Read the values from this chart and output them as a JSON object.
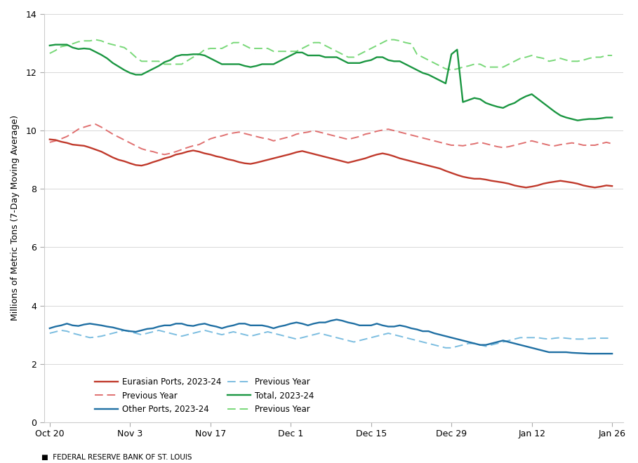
{
  "title": "",
  "ylabel": "Millions of Metric Tons (7-Day Moving Average)",
  "xlabel": "",
  "footnote": "FEDERAL RESERVE BANK OF ST. LOUIS",
  "ylim": [
    0,
    14
  ],
  "yticks": [
    0,
    2,
    4,
    6,
    8,
    10,
    12,
    14
  ],
  "colors": {
    "eurasian_current": "#C0392B",
    "eurasian_prev": "#E07070",
    "other_current": "#1F6FA3",
    "other_prev": "#7BBDE0",
    "total_current": "#1A9641",
    "total_prev": "#78D878"
  },
  "legend_labels": {
    "eurasian_current": "Eurasian Ports, 2023-24",
    "eurasian_prev": "Previous Year",
    "other_current": "Other Ports, 2023-24",
    "other_prev": "Previous Year",
    "total_current": "Total, 2023-24",
    "total_prev": "Previous Year"
  },
  "start_date": "2023-10-20",
  "num_days": 99,
  "eurasian_current": [
    9.7,
    9.68,
    9.62,
    9.58,
    9.52,
    9.5,
    9.48,
    9.42,
    9.35,
    9.28,
    9.18,
    9.08,
    9.0,
    8.95,
    8.88,
    8.82,
    8.8,
    8.85,
    8.92,
    8.98,
    9.05,
    9.1,
    9.18,
    9.22,
    9.28,
    9.32,
    9.28,
    9.22,
    9.18,
    9.12,
    9.08,
    9.02,
    8.98,
    8.92,
    8.88,
    8.86,
    8.9,
    8.95,
    9.0,
    9.05,
    9.1,
    9.15,
    9.2,
    9.26,
    9.3,
    9.25,
    9.2,
    9.15,
    9.1,
    9.05,
    9.0,
    8.95,
    8.9,
    8.95,
    9.0,
    9.05,
    9.12,
    9.18,
    9.22,
    9.18,
    9.12,
    9.05,
    9.0,
    8.95,
    8.9,
    8.85,
    8.8,
    8.75,
    8.7,
    8.62,
    8.55,
    8.48,
    8.42,
    8.38,
    8.35,
    8.35,
    8.32,
    8.28,
    8.25,
    8.22,
    8.18,
    8.12,
    8.08,
    8.05,
    8.08,
    8.12,
    8.18,
    8.22,
    8.25,
    8.28,
    8.25,
    8.22,
    8.18,
    8.12,
    8.08,
    8.05,
    8.08,
    8.12,
    8.1
  ],
  "eurasian_prev": [
    9.6,
    9.65,
    9.72,
    9.8,
    9.92,
    10.05,
    10.12,
    10.18,
    10.22,
    10.12,
    10.0,
    9.88,
    9.78,
    9.68,
    9.58,
    9.48,
    9.38,
    9.32,
    9.28,
    9.22,
    9.18,
    9.22,
    9.28,
    9.35,
    9.42,
    9.48,
    9.52,
    9.62,
    9.72,
    9.78,
    9.82,
    9.88,
    9.92,
    9.95,
    9.9,
    9.85,
    9.8,
    9.75,
    9.72,
    9.65,
    9.7,
    9.75,
    9.8,
    9.88,
    9.92,
    9.95,
    10.0,
    9.95,
    9.9,
    9.85,
    9.8,
    9.75,
    9.7,
    9.75,
    9.8,
    9.88,
    9.92,
    9.98,
    10.02,
    10.05,
    10.0,
    9.95,
    9.9,
    9.85,
    9.8,
    9.75,
    9.7,
    9.65,
    9.6,
    9.55,
    9.5,
    9.5,
    9.48,
    9.52,
    9.55,
    9.6,
    9.55,
    9.5,
    9.45,
    9.42,
    9.45,
    9.5,
    9.55,
    9.6,
    9.65,
    9.6,
    9.55,
    9.5,
    9.48,
    9.52,
    9.55,
    9.58,
    9.55,
    9.5,
    9.5,
    9.5,
    9.55,
    9.6,
    9.55
  ],
  "other_current": [
    3.22,
    3.28,
    3.32,
    3.38,
    3.32,
    3.3,
    3.35,
    3.38,
    3.35,
    3.32,
    3.28,
    3.25,
    3.2,
    3.15,
    3.12,
    3.1,
    3.15,
    3.2,
    3.22,
    3.28,
    3.32,
    3.32,
    3.38,
    3.38,
    3.32,
    3.3,
    3.35,
    3.38,
    3.32,
    3.28,
    3.22,
    3.28,
    3.32,
    3.38,
    3.38,
    3.32,
    3.32,
    3.32,
    3.28,
    3.22,
    3.28,
    3.32,
    3.38,
    3.42,
    3.38,
    3.32,
    3.38,
    3.42,
    3.42,
    3.48,
    3.52,
    3.48,
    3.42,
    3.38,
    3.32,
    3.32,
    3.32,
    3.38,
    3.32,
    3.28,
    3.28,
    3.32,
    3.28,
    3.22,
    3.18,
    3.12,
    3.12,
    3.05,
    3.0,
    2.95,
    2.9,
    2.85,
    2.8,
    2.75,
    2.7,
    2.65,
    2.65,
    2.7,
    2.75,
    2.8,
    2.75,
    2.7,
    2.65,
    2.6,
    2.55,
    2.5,
    2.45,
    2.4,
    2.4,
    2.4,
    2.4,
    2.38,
    2.37,
    2.36,
    2.35,
    2.35,
    2.35,
    2.35,
    2.35
  ],
  "other_prev": [
    3.05,
    3.1,
    3.15,
    3.12,
    3.05,
    3.0,
    2.95,
    2.9,
    2.92,
    2.95,
    3.0,
    3.05,
    3.1,
    3.15,
    3.1,
    3.05,
    3.0,
    3.05,
    3.1,
    3.15,
    3.1,
    3.05,
    3.0,
    2.95,
    3.0,
    3.05,
    3.1,
    3.15,
    3.1,
    3.05,
    3.0,
    3.05,
    3.1,
    3.05,
    3.0,
    2.95,
    3.0,
    3.05,
    3.1,
    3.05,
    3.0,
    2.95,
    2.9,
    2.85,
    2.9,
    2.95,
    3.0,
    3.05,
    3.0,
    2.95,
    2.9,
    2.85,
    2.8,
    2.75,
    2.8,
    2.85,
    2.9,
    2.95,
    3.0,
    3.05,
    3.0,
    2.95,
    2.9,
    2.85,
    2.8,
    2.75,
    2.7,
    2.65,
    2.6,
    2.55,
    2.55,
    2.6,
    2.65,
    2.7,
    2.7,
    2.65,
    2.6,
    2.65,
    2.7,
    2.75,
    2.8,
    2.85,
    2.9,
    2.9,
    2.9,
    2.9,
    2.87,
    2.85,
    2.88,
    2.9,
    2.88,
    2.86,
    2.85,
    2.85,
    2.87,
    2.88,
    2.88,
    2.88,
    2.88
  ],
  "total_current": [
    12.92,
    12.95,
    12.95,
    12.95,
    12.85,
    12.8,
    12.82,
    12.8,
    12.7,
    12.6,
    12.48,
    12.32,
    12.2,
    12.08,
    11.98,
    11.92,
    11.92,
    12.02,
    12.12,
    12.22,
    12.35,
    12.42,
    12.55,
    12.6,
    12.6,
    12.62,
    12.62,
    12.58,
    12.48,
    12.38,
    12.28,
    12.28,
    12.28,
    12.28,
    12.22,
    12.18,
    12.22,
    12.28,
    12.28,
    12.28,
    12.38,
    12.48,
    12.58,
    12.68,
    12.68,
    12.58,
    12.58,
    12.58,
    12.52,
    12.52,
    12.52,
    12.42,
    12.32,
    12.32,
    12.32,
    12.38,
    12.42,
    12.52,
    12.52,
    12.42,
    12.38,
    12.38,
    12.28,
    12.18,
    12.08,
    11.98,
    11.92,
    11.82,
    11.72,
    11.62,
    12.62,
    12.78,
    10.98,
    11.05,
    11.12,
    11.08,
    10.95,
    10.88,
    10.82,
    10.78,
    10.88,
    10.95,
    11.08,
    11.18,
    11.25,
    11.1,
    10.95,
    10.8,
    10.65,
    10.52,
    10.45,
    10.4,
    10.35,
    10.38,
    10.4,
    10.4,
    10.42,
    10.45,
    10.45
  ],
  "total_prev": [
    12.65,
    12.75,
    12.88,
    12.92,
    12.98,
    13.05,
    13.08,
    13.08,
    13.12,
    13.08,
    13.0,
    12.95,
    12.9,
    12.85,
    12.7,
    12.52,
    12.38,
    12.38,
    12.38,
    12.38,
    12.28,
    12.28,
    12.28,
    12.28,
    12.4,
    12.52,
    12.62,
    12.78,
    12.82,
    12.82,
    12.82,
    12.92,
    13.02,
    13.02,
    12.92,
    12.82,
    12.82,
    12.82,
    12.82,
    12.72,
    12.72,
    12.72,
    12.72,
    12.72,
    12.82,
    12.92,
    13.02,
    13.02,
    12.92,
    12.82,
    12.72,
    12.62,
    12.52,
    12.52,
    12.62,
    12.72,
    12.82,
    12.92,
    13.02,
    13.12,
    13.12,
    13.08,
    13.02,
    12.98,
    12.62,
    12.52,
    12.42,
    12.32,
    12.22,
    12.12,
    12.08,
    12.12,
    12.18,
    12.22,
    12.28,
    12.28,
    12.18,
    12.18,
    12.18,
    12.18,
    12.28,
    12.38,
    12.48,
    12.52,
    12.58,
    12.52,
    12.48,
    12.38,
    12.42,
    12.48,
    12.42,
    12.38,
    12.38,
    12.42,
    12.48,
    12.52,
    12.52,
    12.58,
    12.58
  ]
}
